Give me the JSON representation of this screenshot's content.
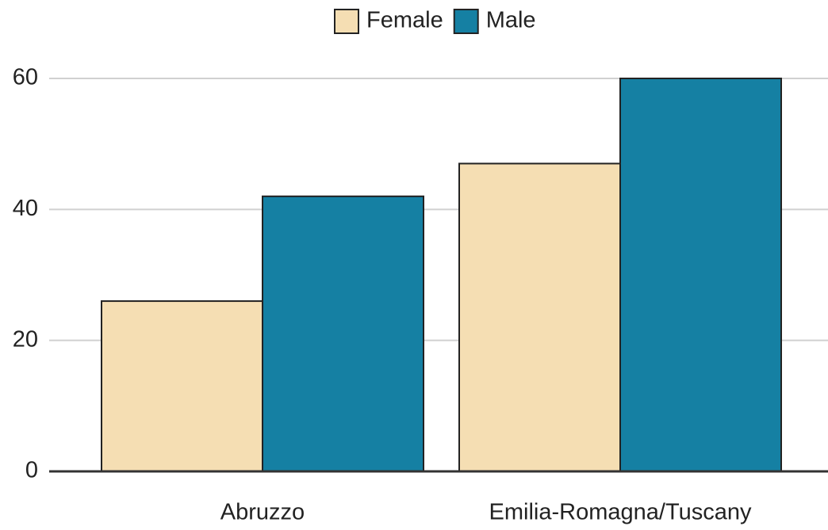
{
  "chart_data": {
    "type": "bar",
    "categories": [
      "Abruzzo",
      "Emilia-Romagna/Tuscany"
    ],
    "series": [
      {
        "name": "Female",
        "color": "#f5deb3",
        "values": [
          26,
          47
        ]
      },
      {
        "name": "Male",
        "color": "#1580a3",
        "values": [
          42,
          60
        ]
      }
    ],
    "ylim": [
      0,
      60
    ],
    "yticks": [
      0,
      20,
      40,
      60
    ],
    "grid": true,
    "legend": "top"
  }
}
